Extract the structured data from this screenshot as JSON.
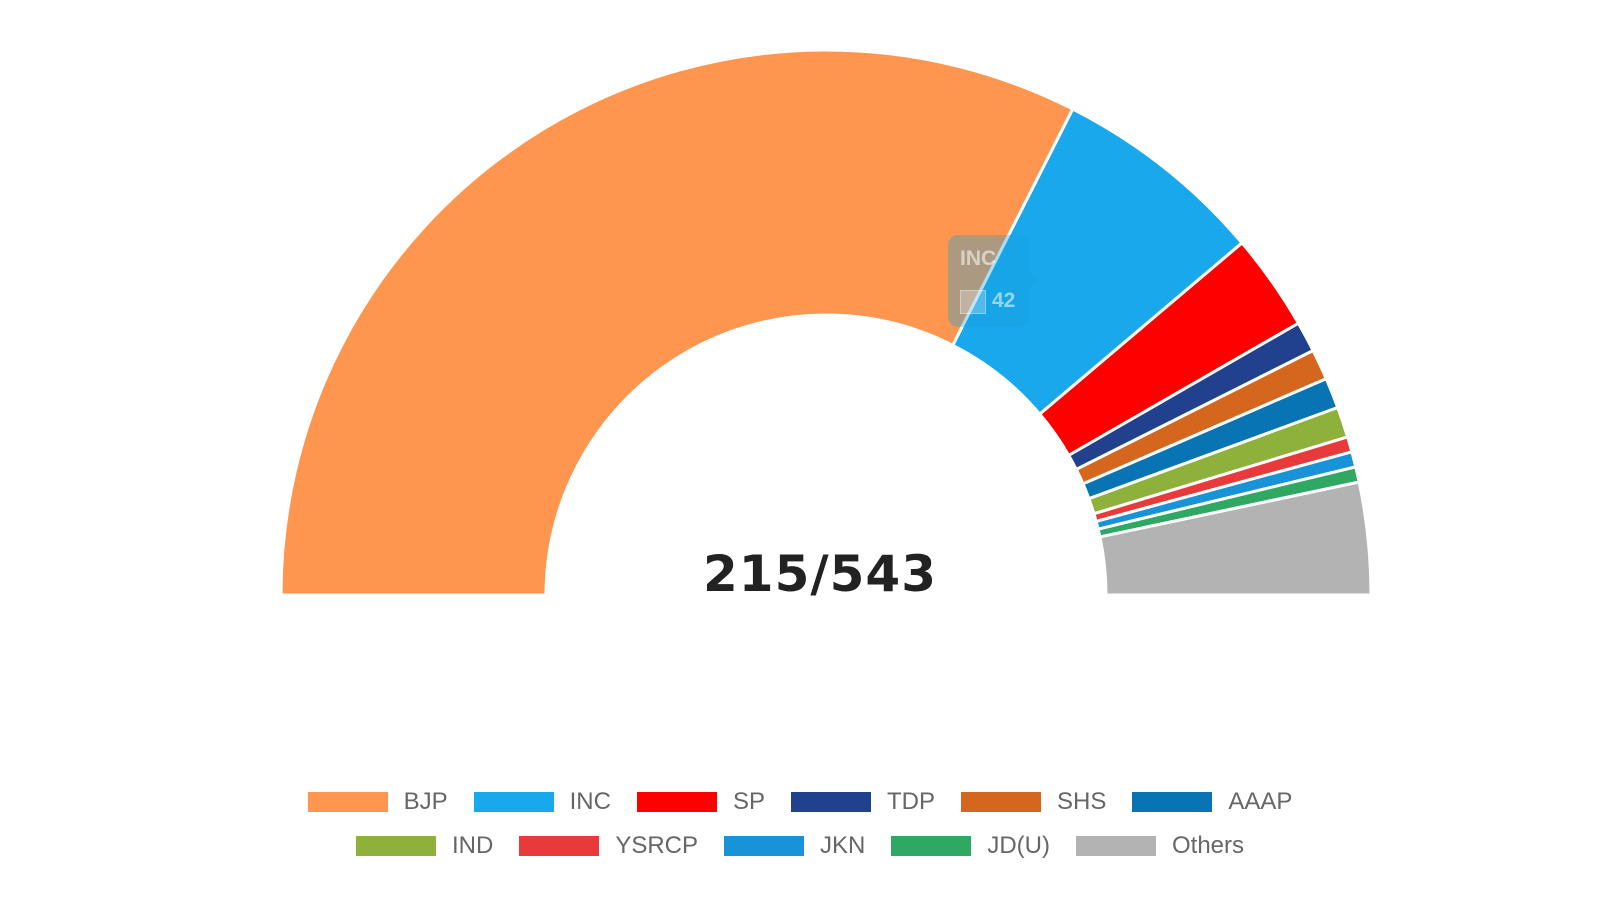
{
  "chart_data": {
    "type": "pie",
    "subtype": "semi-donut (parliament)",
    "center_label": "215/543",
    "series": [
      {
        "name": "BJP",
        "value": 215,
        "color": "#FE964F"
      },
      {
        "name": "INC",
        "value": 42,
        "color": "#19A8EC"
      },
      {
        "name": "SP",
        "value": 19,
        "color": "#FF0000"
      },
      {
        "name": "TDP",
        "value": 6,
        "color": "#21418F"
      },
      {
        "name": "SHS",
        "value": 6,
        "color": "#D5661E"
      },
      {
        "name": "AAAP",
        "value": 6,
        "color": "#0874B4"
      },
      {
        "name": "IND",
        "value": 6,
        "color": "#8DB13A"
      },
      {
        "name": "YSRCP",
        "value": 3,
        "color": "#E83A3A"
      },
      {
        "name": "JKN",
        "value": 3,
        "color": "#1893D8"
      },
      {
        "name": "JD(U)",
        "value": 3,
        "color": "#2EA862"
      },
      {
        "name": "Others",
        "value": 22,
        "color": "#B3B3B3"
      }
    ],
    "legend_position": "bottom",
    "tooltip": {
      "title": "INC",
      "value": "42"
    }
  }
}
